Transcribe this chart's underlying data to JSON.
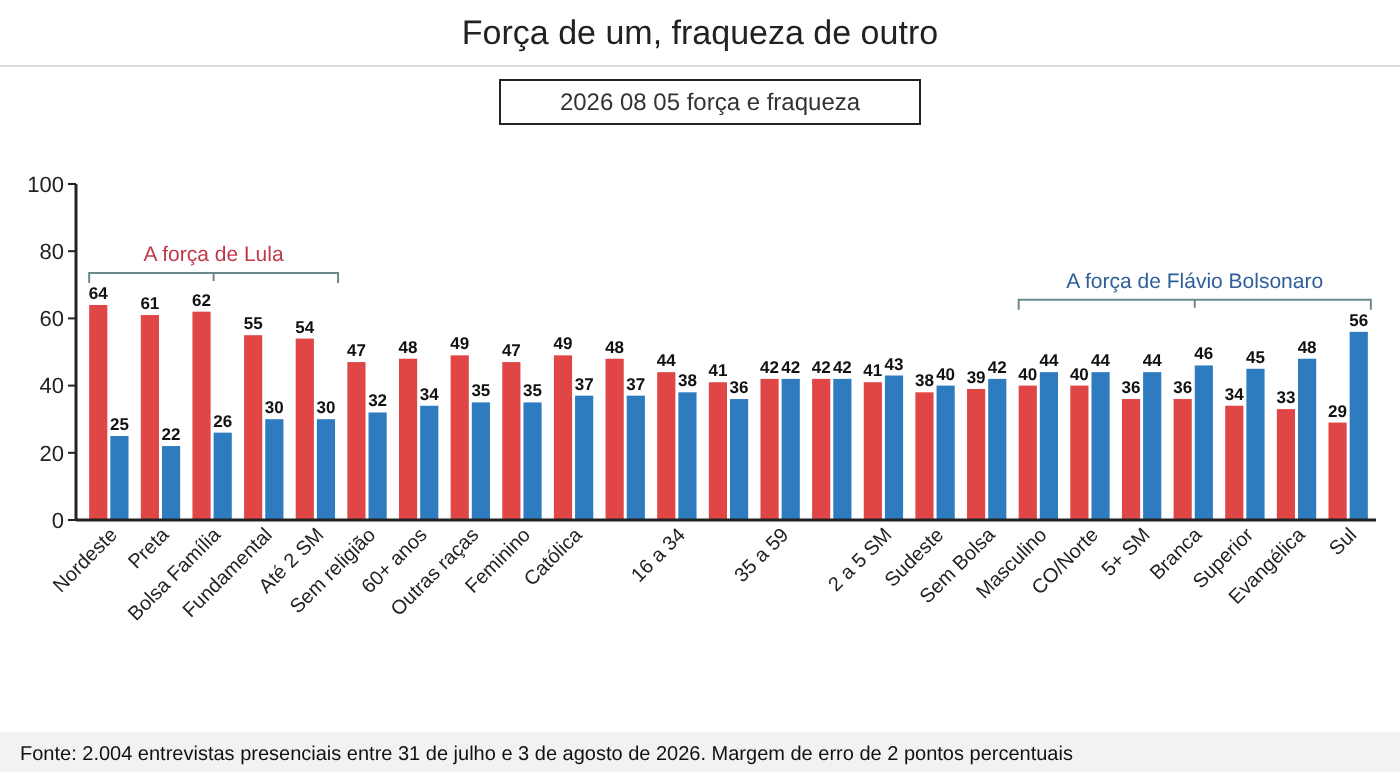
{
  "chart_data": {
    "type": "bar",
    "title": "Força de um, fraqueza de outro",
    "categories": [
      "Nordeste",
      "Preta",
      "Bolsa Família",
      "Fundamental",
      "Até 2 SM",
      "Sem religião",
      "60+ anos",
      "Outras raças",
      "Feminino",
      "Católica",
      null,
      "16 a 34",
      null,
      "35 a 59",
      null,
      "2 a 5 SM",
      "Sudeste",
      "Sem Bolsa",
      "Masculino",
      "CO/Norte",
      "5+ SM",
      "Branca",
      "Superior",
      "Evangélica",
      "Sul"
    ],
    "series": [
      {
        "color": "#e04646",
        "values": [
          64,
          61,
          62,
          55,
          54,
          47,
          48,
          49,
          47,
          49,
          48,
          44,
          41,
          42,
          42,
          41,
          38,
          39,
          40,
          40,
          36,
          36,
          34,
          33,
          29
        ]
      },
      {
        "color": "#2e7bc0",
        "values": [
          25,
          22,
          26,
          30,
          30,
          32,
          34,
          35,
          35,
          37,
          37,
          38,
          36,
          42,
          42,
          43,
          40,
          42,
          44,
          44,
          44,
          46,
          45,
          48,
          56
        ]
      }
    ],
    "ylim": [
      0,
      100
    ],
    "yticks": [
      0,
      20,
      40,
      60,
      80,
      100
    ],
    "data_labels": true,
    "annotations": [
      "A força de Lula",
      "A força de Flávio Bolsonaro",
      "2026 08 05 força e fraqueza",
      "Fonte: 2.004 entrevistas presenciais entre 31 de julho e 3 de agosto de 2026. Margem de erro de 2 pontos percentuais"
    ]
  }
}
